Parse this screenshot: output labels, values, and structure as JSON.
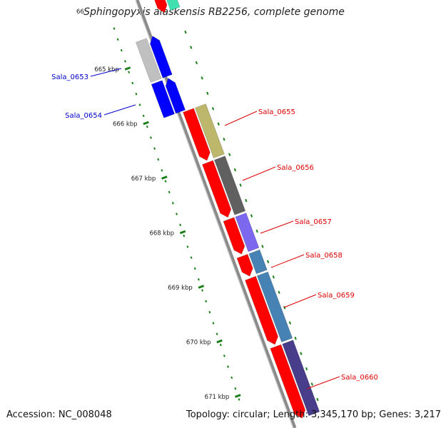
{
  "title": "Sphingopyxis alaskensis RB2256, complete genome",
  "footer": {
    "accession": "Accession: NC_008048",
    "topology": "Topology: circular; Length: 3,345,170 bp; Genes: 3,217"
  },
  "kbp_labels": [
    {
      "kbp": 665,
      "text": "665 kbp"
    },
    {
      "kbp": 666,
      "text": "666 kbp"
    },
    {
      "kbp": 667,
      "text": "667 kbp"
    },
    {
      "kbp": 668,
      "text": "668 kbp"
    },
    {
      "kbp": 669,
      "text": "669 kbp"
    },
    {
      "kbp": 670,
      "text": "670 kbp"
    },
    {
      "kbp": 671,
      "text": "671 kbp"
    }
  ],
  "cut_label": "66",
  "genes": [
    {
      "name": "Sala_0653",
      "strand": "minus",
      "label_color": "#0000cc",
      "cog_color": "#c0c0c0"
    },
    {
      "name": "Sala_0654",
      "strand": "minus",
      "label_color": "#0000cc",
      "cog_color": "#0000ff"
    },
    {
      "name": "Sala_0655",
      "strand": "plus",
      "label_color": "#dd0000",
      "cog_color": "#bdb76b"
    },
    {
      "name": "Sala_0656",
      "strand": "plus",
      "label_color": "#dd0000",
      "cog_color": "#606060"
    },
    {
      "name": "Sala_0657",
      "strand": "plus",
      "label_color": "#dd0000",
      "cog_color": "#7b68ee"
    },
    {
      "name": "Sala_0658",
      "strand": "plus",
      "label_color": "#dd0000",
      "cog_color": "#4682b4"
    },
    {
      "name": "Sala_0659",
      "strand": "plus",
      "label_color": "#dd0000",
      "cog_color": "#4682b4"
    },
    {
      "name": "Sala_0660",
      "strand": "plus",
      "label_color": "#dd0000",
      "cog_color": "#483d8b"
    }
  ],
  "colors": {
    "backbone": "#8a8a8a",
    "plus_strand": "#ff0000",
    "minus_strand": "#0000ff",
    "tick": "#1a7f1a",
    "gc_skew": "#1a7f1a",
    "previous_gene_teal": "#40e0b0"
  }
}
